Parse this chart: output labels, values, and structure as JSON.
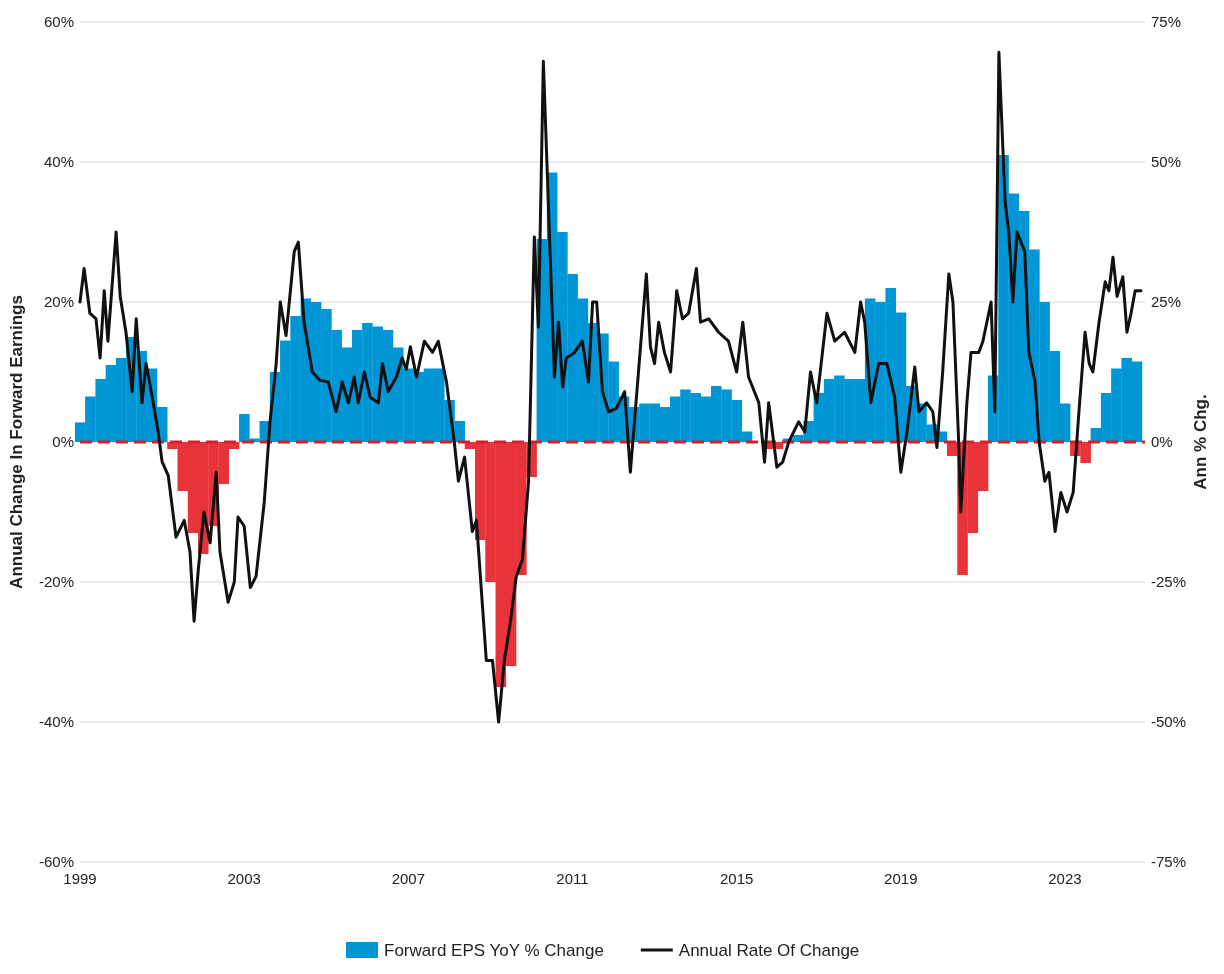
{
  "chart_data": {
    "type": "bar",
    "ylabel": "Annual Change In Forward Earnings",
    "y2label": "Ann % Chg.",
    "xlim": [
      1999,
      2024.95
    ],
    "xticks": [
      1999,
      2003,
      2007,
      2011,
      2015,
      2019,
      2023
    ],
    "ylim": [
      -60,
      60
    ],
    "yticks": [
      {
        "value": -60,
        "label": "-60%"
      },
      {
        "value": -40,
        "label": "-40%"
      },
      {
        "value": -20,
        "label": "-20%"
      },
      {
        "value": 0,
        "label": "0%"
      },
      {
        "value": 20,
        "label": "20%"
      },
      {
        "value": 40,
        "label": "40%"
      },
      {
        "value": 60,
        "label": "60%"
      }
    ],
    "y2lim": [
      -75,
      75
    ],
    "y2ticks": [
      {
        "value": -75,
        "label": "-75%"
      },
      {
        "value": -50,
        "label": "-50%"
      },
      {
        "value": -25,
        "label": "-25%"
      },
      {
        "value": 0,
        "label": "0%"
      },
      {
        "value": 25,
        "label": "25%"
      },
      {
        "value": 50,
        "label": "50%"
      },
      {
        "value": 75,
        "label": "75%"
      }
    ],
    "grid": "y",
    "legend": "bottom",
    "ref_lines": [
      {
        "axis": "y",
        "value": 0,
        "color": "#d0232a",
        "line_style": "dashed"
      }
    ],
    "series": [
      {
        "name": "Forward EPS YoY % Change",
        "color": "#0096d6",
        "x": [
          1999,
          1999.25,
          1999.5,
          1999.75,
          2000,
          2000.25,
          2000.5,
          2000.75,
          2001,
          2001.25,
          2001.5,
          2001.75,
          2002,
          2002.25,
          2002.5,
          2002.75,
          2003,
          2003.25,
          2003.5,
          2003.75,
          2004,
          2004.25,
          2004.5,
          2004.75,
          2005,
          2005.25,
          2005.5,
          2005.75,
          2006,
          2006.25,
          2006.5,
          2006.75,
          2007,
          2007.25,
          2007.5,
          2007.75,
          2008,
          2008.25,
          2008.5,
          2008.75,
          2009,
          2009.25,
          2009.5,
          2009.75,
          2010,
          2010.25,
          2010.5,
          2010.75,
          2011,
          2011.25,
          2011.5,
          2011.75,
          2012,
          2012.25,
          2012.5,
          2012.75,
          2013,
          2013.25,
          2013.5,
          2013.75,
          2014,
          2014.25,
          2014.5,
          2014.75,
          2015,
          2015.25,
          2015.5,
          2015.75,
          2016,
          2016.25,
          2016.5,
          2016.75,
          2017,
          2017.25,
          2017.5,
          2017.75,
          2018,
          2018.25,
          2018.5,
          2018.75,
          2019,
          2019.25,
          2019.5,
          2019.75,
          2020,
          2020.25,
          2020.5,
          2020.75,
          2021,
          2021.25,
          2021.5,
          2021.75,
          2022,
          2022.25,
          2022.5,
          2022.75,
          2023,
          2023.25,
          2023.5,
          2023.75,
          2024,
          2024.25,
          2024.5,
          2024.75
        ],
        "values": [
          2.8,
          6.5,
          9,
          11,
          12,
          15,
          13,
          10.5,
          5,
          -1,
          -7,
          -13,
          -16,
          -12,
          -6,
          -1,
          4,
          0.5,
          3,
          10,
          14.5,
          18,
          20.5,
          20,
          19,
          16,
          13.5,
          16,
          17,
          16.5,
          16,
          13.5,
          10.5,
          10,
          10.5,
          10.5,
          6,
          3,
          -1,
          -14,
          -20,
          -35,
          -32,
          -19,
          -5,
          29,
          38.5,
          30,
          24,
          20.5,
          17,
          15.5,
          11.5,
          6.5,
          5,
          5.5,
          5.5,
          5,
          6.5,
          7.5,
          7,
          6.5,
          8,
          7.5,
          6,
          1.5,
          0,
          -1,
          -1,
          0.5,
          1,
          3,
          7,
          9,
          9.5,
          9,
          9,
          20.5,
          20,
          22,
          18.5,
          8,
          5.5,
          2.5,
          1.5,
          -2,
          -19,
          -13,
          -7,
          9.5,
          41,
          35.5,
          33,
          27.5,
          20,
          13,
          5.5,
          -2,
          -3,
          2,
          7,
          10.5,
          12,
          11.5
        ],
        "colors": [
          "#0096d6",
          "#0096d6",
          "#0096d6",
          "#0096d6",
          "#0096d6",
          "#0096d6",
          "#0096d6",
          "#0096d6",
          "#0096d6",
          "#e8333a",
          "#e8333a",
          "#e8333a",
          "#e8333a",
          "#e8333a",
          "#e8333a",
          "#e8333a",
          "#0096d6",
          "#0096d6",
          "#0096d6",
          "#0096d6",
          "#0096d6",
          "#0096d6",
          "#0096d6",
          "#0096d6",
          "#0096d6",
          "#0096d6",
          "#0096d6",
          "#0096d6",
          "#0096d6",
          "#0096d6",
          "#0096d6",
          "#0096d6",
          "#0096d6",
          "#0096d6",
          "#0096d6",
          "#0096d6",
          "#0096d6",
          "#0096d6",
          "#e8333a",
          "#e8333a",
          "#e8333a",
          "#e8333a",
          "#e8333a",
          "#e8333a",
          "#e8333a",
          "#0096d6",
          "#0096d6",
          "#0096d6",
          "#0096d6",
          "#0096d6",
          "#0096d6",
          "#0096d6",
          "#0096d6",
          "#0096d6",
          "#0096d6",
          "#0096d6",
          "#0096d6",
          "#0096d6",
          "#0096d6",
          "#0096d6",
          "#0096d6",
          "#0096d6",
          "#0096d6",
          "#0096d6",
          "#0096d6",
          "#0096d6",
          "#0096d6",
          "#e8333a",
          "#e8333a",
          "#0096d6",
          "#0096d6",
          "#0096d6",
          "#0096d6",
          "#0096d6",
          "#0096d6",
          "#0096d6",
          "#0096d6",
          "#0096d6",
          "#0096d6",
          "#0096d6",
          "#0096d6",
          "#0096d6",
          "#0096d6",
          "#0096d6",
          "#0096d6",
          "#e8333a",
          "#e8333a",
          "#e8333a",
          "#e8333a",
          "#0096d6",
          "#0096d6",
          "#0096d6",
          "#0096d6",
          "#0096d6",
          "#0096d6",
          "#0096d6",
          "#0096d6",
          "#e8333a",
          "#e8333a",
          "#0096d6",
          "#0096d6",
          "#0096d6",
          "#0096d6",
          "#0096d6"
        ]
      },
      {
        "type": "line",
        "name": "Annual Rate Of Change",
        "color": "#111111",
        "axis": "y2",
        "x": [
          1999,
          1999.1,
          1999.24,
          1999.39,
          1999.49,
          1999.59,
          1999.68,
          1999.88,
          1999.98,
          2000.12,
          2000.27,
          2000.37,
          2000.51,
          2000.61,
          2000.76,
          2000.9,
          2001,
          2001.15,
          2001.34,
          2001.54,
          2001.68,
          2001.78,
          2001.88,
          2002.02,
          2002.17,
          2002.32,
          2002.41,
          2002.61,
          2002.76,
          2002.85,
          2003,
          2003.15,
          2003.29,
          2003.49,
          2003.63,
          2003.78,
          2003.88,
          2004.02,
          2004.22,
          2004.32,
          2004.46,
          2004.66,
          2004.85,
          2005.05,
          2005.24,
          2005.39,
          2005.54,
          2005.68,
          2005.78,
          2005.93,
          2006.07,
          2006.27,
          2006.37,
          2006.51,
          2006.71,
          2006.85,
          2006.95,
          2007.05,
          2007.2,
          2007.39,
          2007.59,
          2007.73,
          2007.93,
          2008.12,
          2008.22,
          2008.37,
          2008.56,
          2008.66,
          2008.8,
          2008.9,
          2009.05,
          2009.2,
          2009.34,
          2009.49,
          2009.63,
          2009.78,
          2009.93,
          2010.07,
          2010.17,
          2010.29,
          2010.41,
          2010.56,
          2010.66,
          2010.76,
          2010.85,
          2011.05,
          2011.24,
          2011.39,
          2011.49,
          2011.59,
          2011.73,
          2011.88,
          2012.07,
          2012.27,
          2012.41,
          2012.51,
          2012.8,
          2012.9,
          2013,
          2013.1,
          2013.24,
          2013.39,
          2013.54,
          2013.68,
          2013.83,
          2014.02,
          2014.12,
          2014.32,
          2014.56,
          2014.8,
          2015,
          2015.15,
          2015.29,
          2015.54,
          2015.68,
          2015.78,
          2015.98,
          2016.12,
          2016.27,
          2016.51,
          2016.66,
          2016.8,
          2016.95,
          2017.2,
          2017.39,
          2017.63,
          2017.88,
          2018.02,
          2018.12,
          2018.27,
          2018.46,
          2018.66,
          2018.85,
          2019,
          2019.15,
          2019.34,
          2019.44,
          2019.63,
          2019.78,
          2019.88,
          2020.02,
          2020.17,
          2020.27,
          2020.41,
          2020.46,
          2020.61,
          2020.71,
          2020.9,
          2021,
          2021.2,
          2021.29,
          2021.39,
          2021.54,
          2021.63,
          2021.73,
          2021.83,
          2022.02,
          2022.12,
          2022.27,
          2022.37,
          2022.51,
          2022.61,
          2022.76,
          2022.9,
          2023.05,
          2023.2,
          2023.34,
          2023.49,
          2023.59,
          2023.68,
          2023.83,
          2023.98,
          2024.07,
          2024.17,
          2024.27,
          2024.41,
          2024.51,
          2024.61,
          2024.71,
          2024.85
        ],
        "values": [
          25,
          31,
          23,
          22,
          15,
          27,
          18,
          37.5,
          26,
          19.6,
          9,
          22,
          7,
          14,
          8,
          2,
          -3.5,
          -6,
          -17,
          -14,
          -19.6,
          -32,
          -23,
          -12.5,
          -18,
          -5.4,
          -19.6,
          -28.6,
          -25,
          -13.4,
          -15,
          -26,
          -24,
          -10.7,
          3.6,
          14,
          25,
          19,
          34,
          35.7,
          21.4,
          12.5,
          11,
          10.7,
          5.4,
          10.7,
          7,
          11.6,
          7,
          12.5,
          8,
          7,
          14,
          9,
          11.6,
          15,
          13,
          17,
          11.6,
          18,
          16,
          18,
          10.7,
          0,
          -7,
          -2.7,
          -16,
          -14,
          -28.6,
          -39,
          -39,
          -50,
          -39,
          -32,
          -24,
          -21,
          -7,
          36.6,
          20.5,
          68,
          43,
          11.6,
          21.4,
          9.8,
          15,
          16,
          18,
          10.7,
          25,
          25,
          9,
          5.4,
          6,
          9,
          -5.4,
          3.6,
          30,
          17,
          14,
          21.4,
          16,
          12.5,
          27,
          22,
          23,
          31,
          21.4,
          22,
          19.6,
          18,
          12.5,
          21.4,
          11.6,
          7,
          -3.6,
          7,
          -4.5,
          -3.6,
          0,
          3.6,
          1.8,
          12.5,
          7,
          23,
          18,
          19.6,
          16,
          25,
          21.4,
          7,
          14,
          14,
          8,
          -5.4,
          1.8,
          13.4,
          5.4,
          7,
          5.4,
          -1,
          12.5,
          30,
          25,
          0,
          -12.5,
          7,
          16,
          16,
          18,
          25,
          5.4,
          69.6,
          43,
          37.5,
          25,
          37.5,
          34,
          16,
          10.7,
          0,
          -7,
          -5.4,
          -16,
          -9,
          -12.5,
          -9,
          5.4,
          19.6,
          14,
          12.5,
          21.4,
          28.6,
          27,
          33,
          26,
          29.5,
          19.6,
          23,
          27,
          27
        ]
      }
    ]
  }
}
